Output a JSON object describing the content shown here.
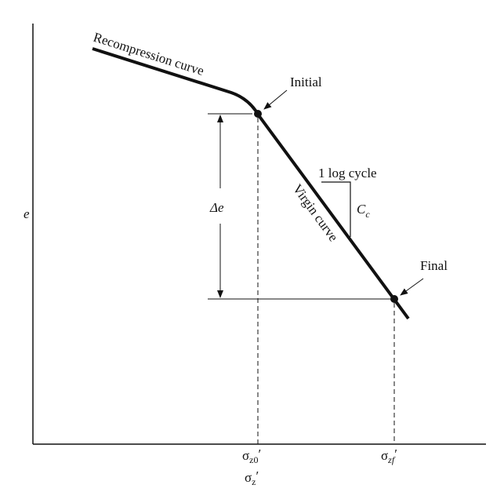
{
  "axes": {
    "y_label": "e",
    "x_label": {
      "symbol": "σ",
      "subscript": "z",
      "prime": "′"
    }
  },
  "ticks": [
    {
      "symbol": "σ",
      "subscript": "z0",
      "prime": "′"
    },
    {
      "symbol": "σ",
      "subscript": "zf",
      "prime": "′"
    }
  ],
  "annotations": {
    "recompression": "Recompression curve",
    "virgin": "Virgin curve",
    "initial": "Initial",
    "final": "Final",
    "log_cycle": "1 log cycle",
    "cc": {
      "symbol": "C",
      "subscript": "c"
    },
    "delta_e": "Δe"
  }
}
